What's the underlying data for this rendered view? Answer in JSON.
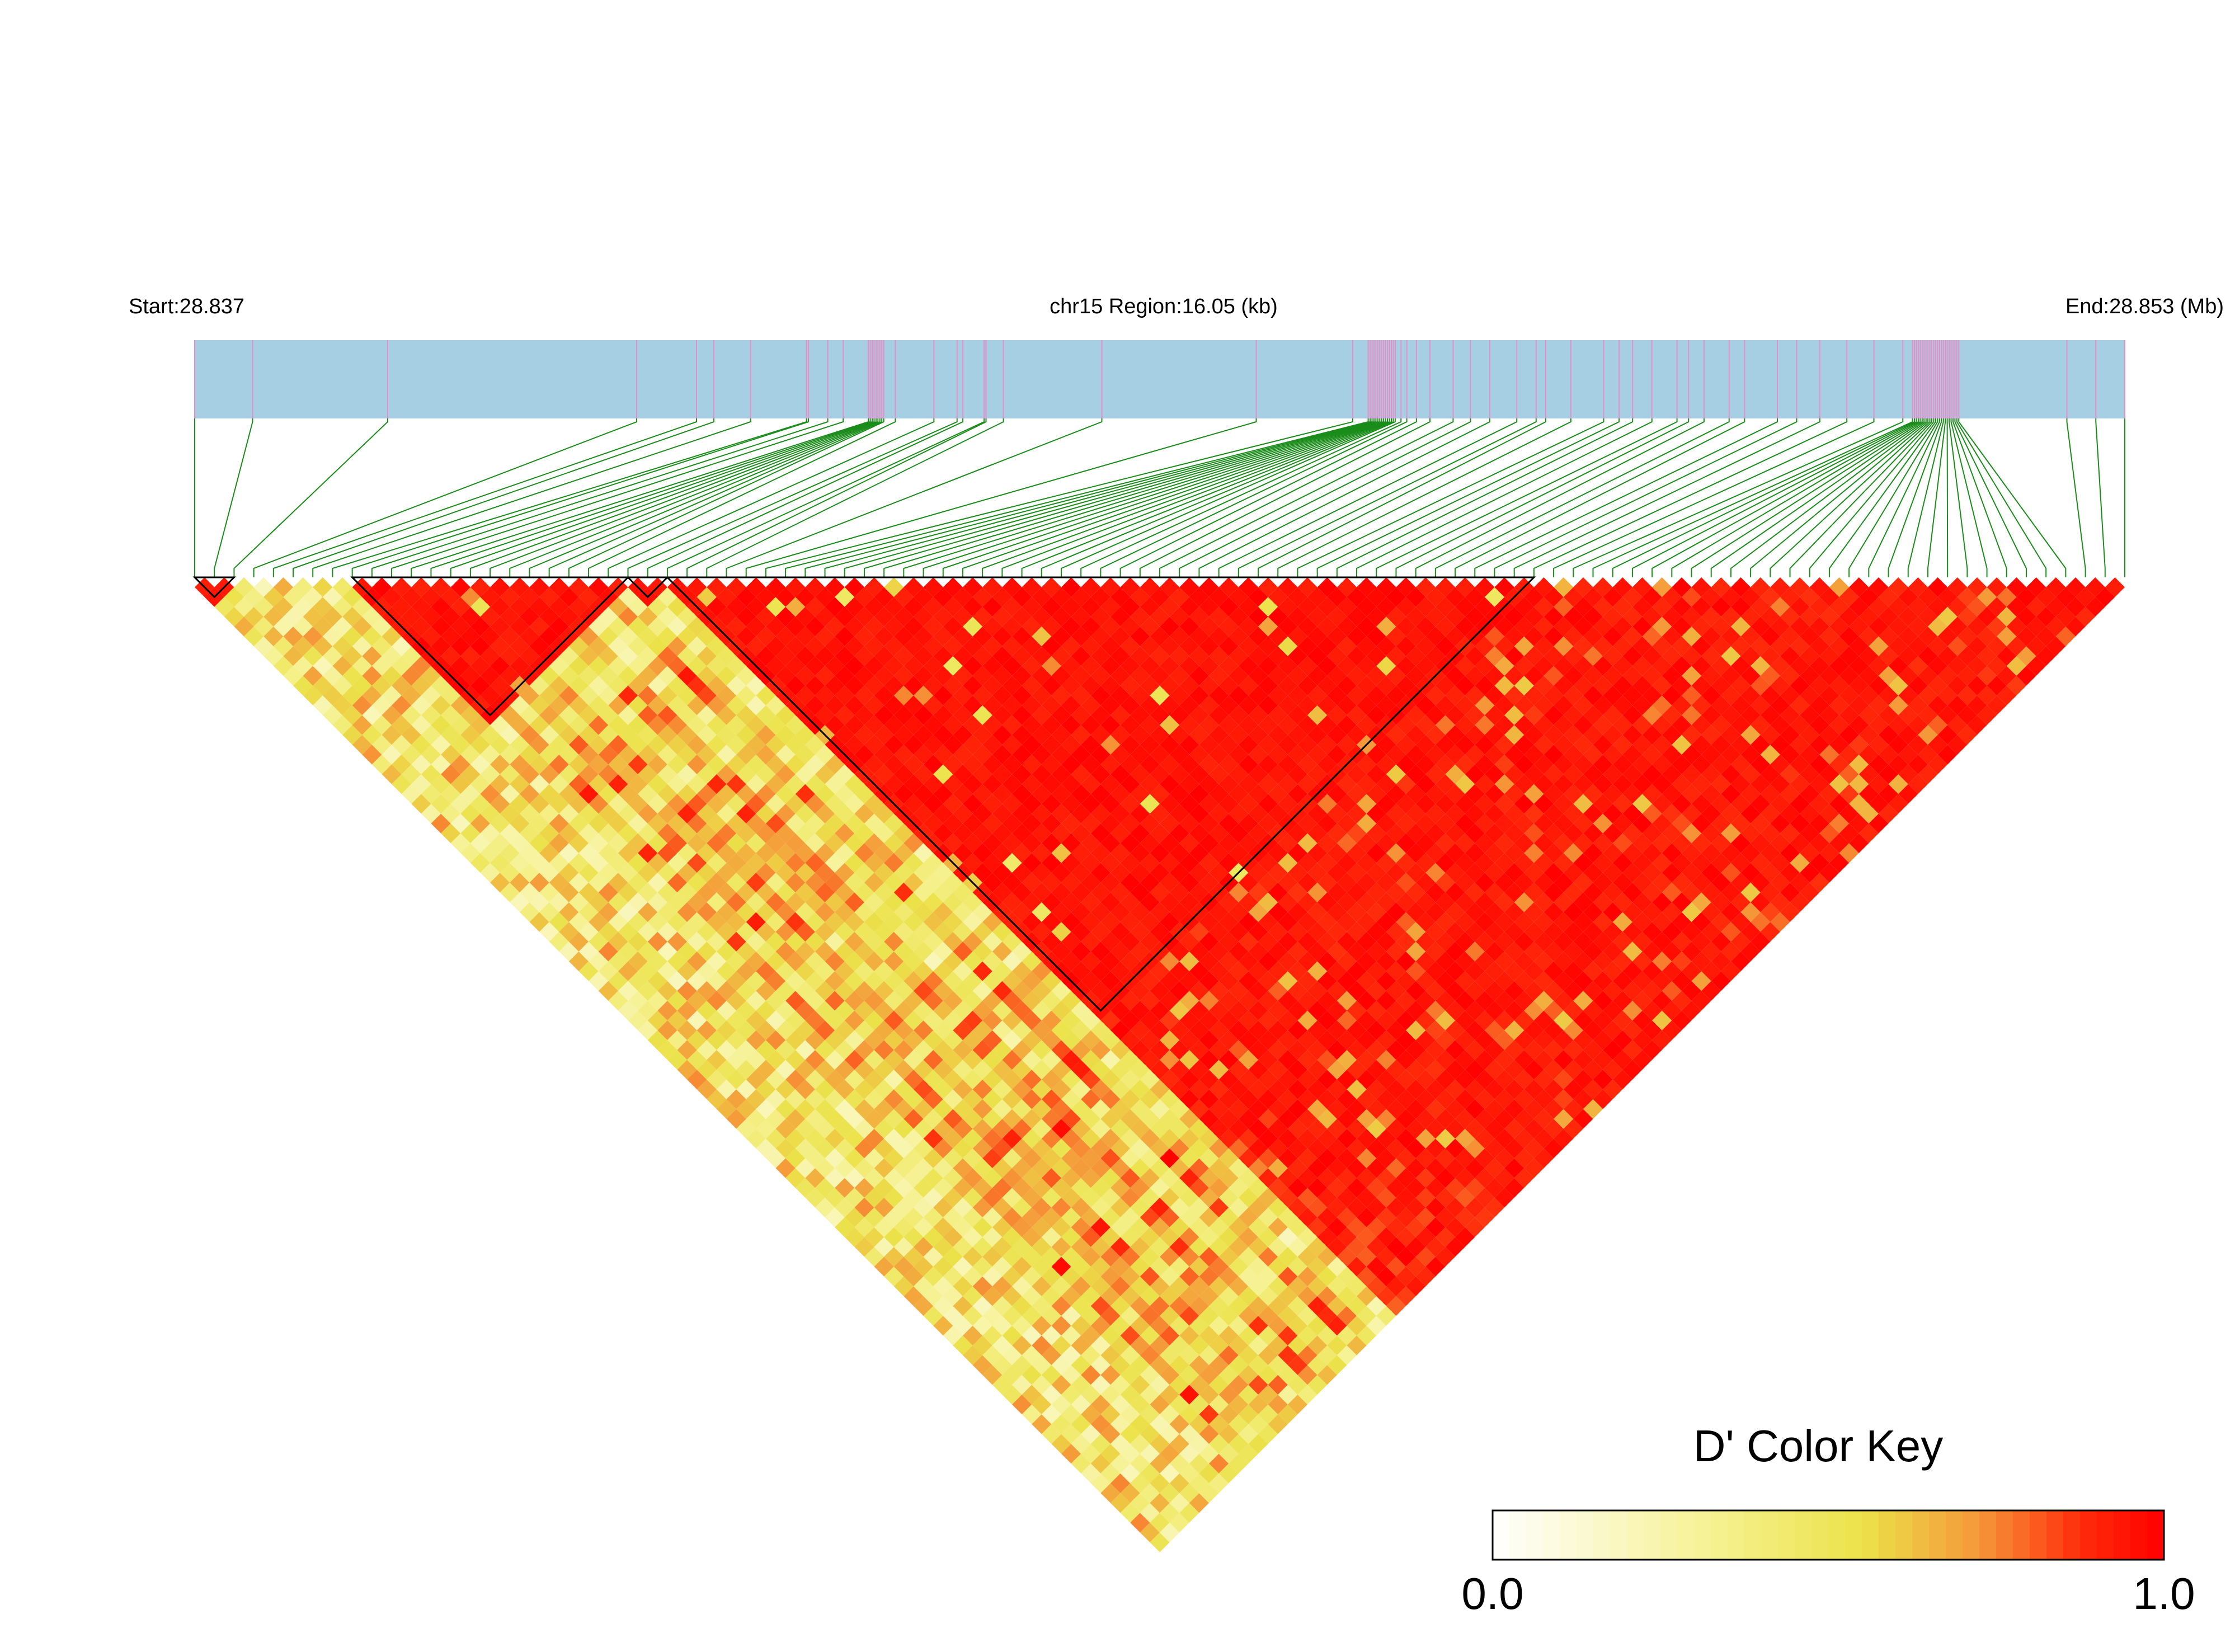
{
  "chart_data": {
    "type": "heatmap",
    "subtype": "ld-triangle",
    "labels": {
      "start": "Start:28.837",
      "region": "chr15 Region:16.05 (kb)",
      "end": "End:28.853 (Mb)"
    },
    "region_mb": [
      28.837,
      28.853
    ],
    "snp_count": 99,
    "snp_positions_fraction": [
      0.0,
      0.03,
      0.1,
      0.229,
      0.26,
      0.269,
      0.288,
      0.317,
      0.318,
      0.328,
      0.336,
      0.349,
      0.35,
      0.351,
      0.352,
      0.353,
      0.354,
      0.355,
      0.356,
      0.357,
      0.363,
      0.383,
      0.395,
      0.398,
      0.409,
      0.41,
      0.419,
      0.47,
      0.55,
      0.6,
      0.608,
      0.609,
      0.61,
      0.611,
      0.612,
      0.613,
      0.614,
      0.615,
      0.616,
      0.617,
      0.618,
      0.619,
      0.62,
      0.621,
      0.622,
      0.625,
      0.628,
      0.633,
      0.64,
      0.652,
      0.661,
      0.671,
      0.685,
      0.695,
      0.7,
      0.713,
      0.73,
      0.738,
      0.745,
      0.755,
      0.768,
      0.774,
      0.782,
      0.795,
      0.803,
      0.82,
      0.83,
      0.842,
      0.856,
      0.87,
      0.885,
      0.89,
      0.891,
      0.892,
      0.893,
      0.894,
      0.895,
      0.896,
      0.897,
      0.898,
      0.899,
      0.9,
      0.901,
      0.902,
      0.903,
      0.904,
      0.905,
      0.906,
      0.907,
      0.908,
      0.909,
      0.91,
      0.911,
      0.912,
      0.913,
      0.914,
      0.97,
      0.985,
      1.0
    ],
    "blocks": [
      {
        "from": 0,
        "to": 2
      },
      {
        "from": 8,
        "to": 22
      },
      {
        "from": 22,
        "to": 24
      },
      {
        "from": 24,
        "to": 68
      }
    ],
    "color_key": {
      "title": "D' Color Key",
      "min_label": "0.0",
      "max_label": "1.0",
      "range": [
        0.0,
        1.0
      ],
      "stops": [
        "#ffffff",
        "#f5f08a",
        "#ebe24a",
        "#f59a3a",
        "#ff2a0a",
        "#ff0000"
      ]
    },
    "colors": {
      "track_fill": "#a7cfe3",
      "snp_tick": "#e58fc8",
      "connector": "#1a8c1a",
      "block_outline": "#000000",
      "high_ld": "#ff0000"
    }
  }
}
